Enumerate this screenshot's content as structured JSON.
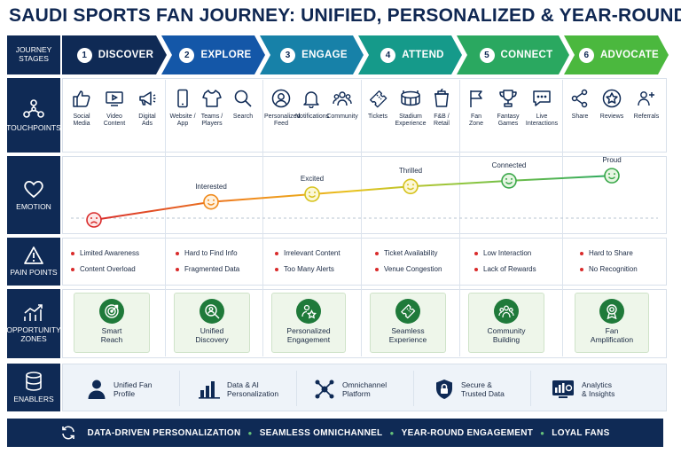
{
  "title": "SAUDI SPORTS FAN JOURNEY: UNIFIED, PERSONALIZED & YEAR-ROUND",
  "row_labels": {
    "journey_stages": "JOURNEY\nSTAGES",
    "touchpoints": "TOUCHPOINTS",
    "emotion": "EMOTION",
    "pain_points": "PAIN POINTS",
    "opportunity_zones": "OPPORTUNITY\nZONES",
    "enablers": "ENABLERS"
  },
  "stages": [
    {
      "num": "1",
      "label": "DISCOVER",
      "color": "#0f2a55"
    },
    {
      "num": "2",
      "label": "EXPLORE",
      "color": "#1457a8"
    },
    {
      "num": "3",
      "label": "ENGAGE",
      "color": "#1781a8"
    },
    {
      "num": "4",
      "label": "ATTEND",
      "color": "#159a8a"
    },
    {
      "num": "5",
      "label": "CONNECT",
      "color": "#2aa860"
    },
    {
      "num": "6",
      "label": "ADVOCATE",
      "color": "#4bb83e"
    }
  ],
  "touchpoints": [
    {
      "label": "Social\nMedia",
      "icon": "thumbs-up-icon"
    },
    {
      "label": "Video\nContent",
      "icon": "video-icon"
    },
    {
      "label": "Digital\nAds",
      "icon": "megaphone-icon"
    },
    {
      "label": "Website /\nApp",
      "icon": "smartphone-icon"
    },
    {
      "label": "Teams /\nPlayers",
      "icon": "jersey-icon"
    },
    {
      "label": "Search",
      "icon": "search-icon"
    },
    {
      "label": "Personalized\nFeed",
      "icon": "user-circle-icon"
    },
    {
      "label": "Notifications",
      "icon": "bell-icon"
    },
    {
      "label": "Community",
      "icon": "group-icon"
    },
    {
      "label": "Tickets",
      "icon": "ticket-icon"
    },
    {
      "label": "Stadium\nExperience",
      "icon": "stadium-icon"
    },
    {
      "label": "F&B /\nRetail",
      "icon": "cup-icon"
    },
    {
      "label": "Fan\nZone",
      "icon": "flag-icon"
    },
    {
      "label": "Fantasy\nGames",
      "icon": "trophy-icon"
    },
    {
      "label": "Live\nInteractions",
      "icon": "chat-icon"
    },
    {
      "label": "Share",
      "icon": "share-icon"
    },
    {
      "label": "Reviews",
      "icon": "star-badge-icon"
    },
    {
      "label": "Referrals",
      "icon": "referral-icon"
    }
  ],
  "emotions": [
    {
      "label": "",
      "level": 0.0,
      "face": "sad-face-icon"
    },
    {
      "label": "Interested",
      "level": 0.35,
      "face": "smile-face-icon"
    },
    {
      "label": "Excited",
      "level": 0.5,
      "face": "smile-face-icon"
    },
    {
      "label": "Thrilled",
      "level": 0.65,
      "face": "smile-face-icon"
    },
    {
      "label": "Connected",
      "level": 0.76,
      "face": "smile-face-icon"
    },
    {
      "label": "Proud",
      "level": 0.86,
      "face": "smile-face-icon"
    }
  ],
  "pain_points": [
    [
      "Limited Awareness",
      "Content Overload"
    ],
    [
      "Hard to Find Info",
      "Fragmented Data"
    ],
    [
      "Irrelevant Content",
      "Too Many Alerts"
    ],
    [
      "Ticket Availability",
      "Venue Congestion"
    ],
    [
      "Low Interaction",
      "Lack of Rewards"
    ],
    [
      "Hard to Share",
      "No Recognition"
    ]
  ],
  "opportunities": [
    {
      "label": "Smart\nReach",
      "icon": "target-icon"
    },
    {
      "label": "Unified\nDiscovery",
      "icon": "search-person-icon"
    },
    {
      "label": "Personalized\nEngagement",
      "icon": "star-person-icon"
    },
    {
      "label": "Seamless\nExperience",
      "icon": "ticket-icon"
    },
    {
      "label": "Community\nBuilding",
      "icon": "group-icon"
    },
    {
      "label": "Fan\nAmplification",
      "icon": "award-icon"
    }
  ],
  "enablers": [
    {
      "label": "Unified Fan\nProfile",
      "icon": "user-icon"
    },
    {
      "label": "Data & AI\nPersonalization",
      "icon": "bar-chart-icon"
    },
    {
      "label": "Omnichannel\nPlatform",
      "icon": "network-icon"
    },
    {
      "label": "Secure &\nTrusted Data",
      "icon": "lock-shield-icon"
    },
    {
      "label": "Analytics\n& Insights",
      "icon": "dashboard-icon"
    }
  ],
  "footer": [
    "DATA-DRIVEN PERSONALIZATION",
    "SEAMLESS OMNICHANNEL",
    "YEAR-ROUND ENGAGEMENT",
    "LOYAL FANS"
  ],
  "colors": {
    "navy": "#0f2a55",
    "green": "#1f7a3a",
    "red": "#d92b2b"
  }
}
